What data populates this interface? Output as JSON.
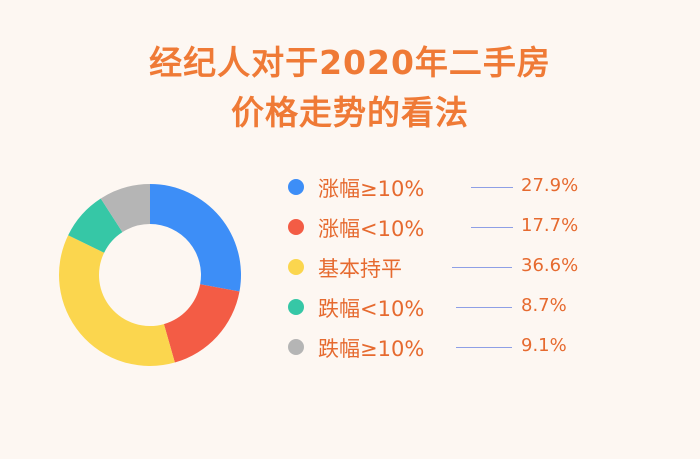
{
  "title_line1": "经纪人对于2020年二手房",
  "title_line2": "价格走势的看法",
  "chart_data": {
    "type": "pie",
    "donut": true,
    "categories": [
      "涨幅≥10%",
      "涨幅<10%",
      "基本持平",
      "跌幅<10%",
      "跌幅≥10%"
    ],
    "values": [
      27.9,
      17.7,
      36.6,
      8.7,
      9.1
    ],
    "value_labels": [
      "27.9%",
      "17.7%",
      "36.6%",
      "8.7%",
      "9.1%"
    ],
    "colors": [
      "#3d8ef7",
      "#f35c45",
      "#fbd64e",
      "#36c7a6",
      "#b5b5b5"
    ]
  },
  "legend": [
    {
      "label": "涨幅≥10%",
      "value": "27.9%"
    },
    {
      "label": "涨幅<10%",
      "value": "17.7%"
    },
    {
      "label": "基本持平",
      "value": "36.6%"
    },
    {
      "label": "跌幅<10%",
      "value": "8.7%"
    },
    {
      "label": "跌幅≥10%",
      "value": "9.1%"
    }
  ]
}
